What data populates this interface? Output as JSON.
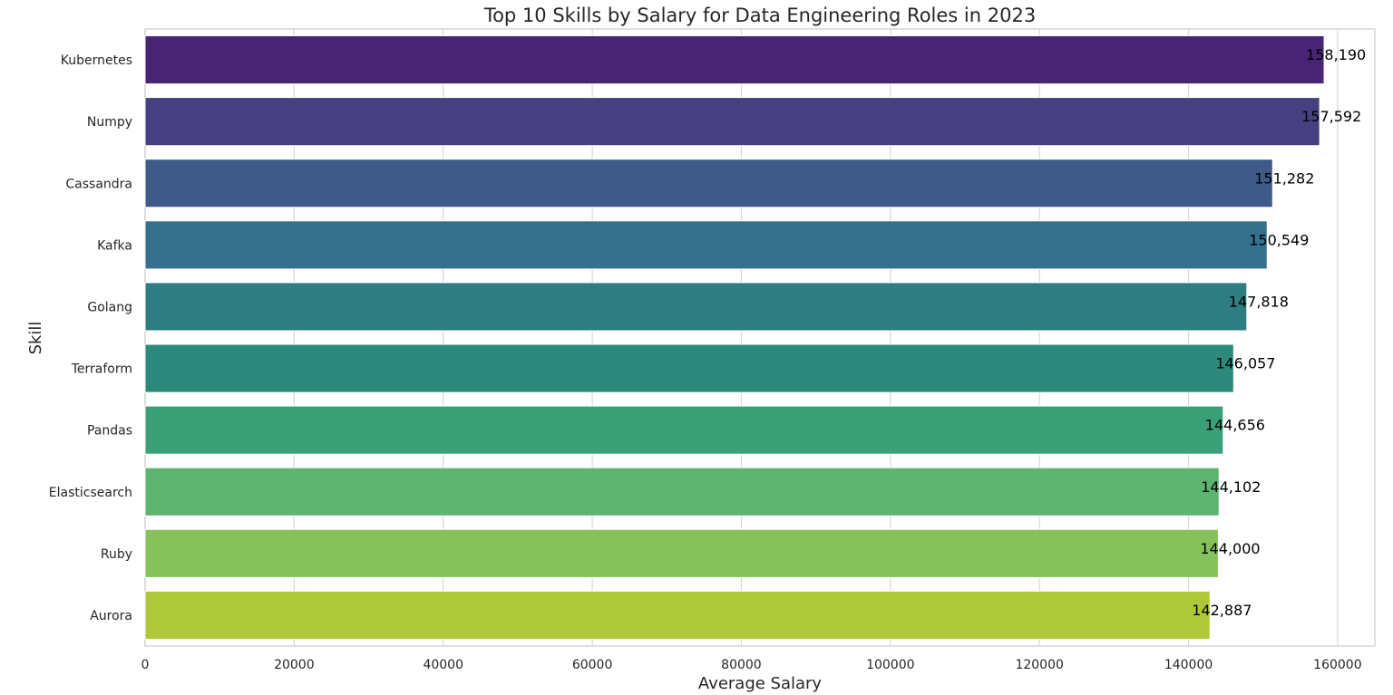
{
  "chart_data": {
    "type": "bar",
    "orientation": "horizontal",
    "title": "Top 10 Skills by Salary for Data Engineering Roles in 2023",
    "xlabel": "Average Salary",
    "ylabel": "Skill",
    "xlim": [
      0,
      165000
    ],
    "xticks": [
      0,
      20000,
      40000,
      60000,
      80000,
      100000,
      120000,
      140000,
      160000
    ],
    "xtick_labels": [
      "0",
      "20000",
      "40000",
      "60000",
      "80000",
      "100000",
      "120000",
      "140000",
      "160000"
    ],
    "grid": true,
    "categories": [
      "Kubernetes",
      "Numpy",
      "Cassandra",
      "Kafka",
      "Golang",
      "Terraform",
      "Pandas",
      "Elasticsearch",
      "Ruby",
      "Aurora"
    ],
    "values": [
      158190,
      157592,
      151282,
      150549,
      147818,
      146057,
      144656,
      144102,
      144000,
      142887
    ],
    "data_labels": [
      "158,190",
      "157,592",
      "151,282",
      "150,549",
      "147,818",
      "146,057",
      "144,656",
      "144,102",
      "144,000",
      "142,887"
    ],
    "colors": [
      "#482475",
      "#463f82",
      "#3e5a89",
      "#35708c",
      "#2e7d80",
      "#2b8a7b",
      "#3aa077",
      "#5db470",
      "#85c35a",
      "#afc838"
    ]
  }
}
